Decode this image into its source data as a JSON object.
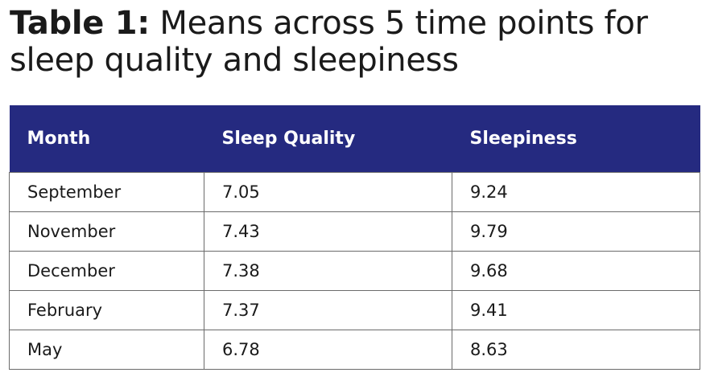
{
  "title": {
    "label": "Table 1:",
    "text": " Means across 5 time points for sleep quality and sleepiness"
  },
  "table": {
    "header_bg": "#252a80",
    "headers": [
      "Month",
      "Sleep Quality",
      "Sleepiness"
    ],
    "rows": [
      [
        "September",
        "7.05",
        "9.24"
      ],
      [
        "November",
        "7.43",
        "9.79"
      ],
      [
        "December",
        "7.38",
        "9.68"
      ],
      [
        "February",
        "7.37",
        "9.41"
      ],
      [
        "May",
        "6.78",
        "8.63"
      ]
    ]
  }
}
